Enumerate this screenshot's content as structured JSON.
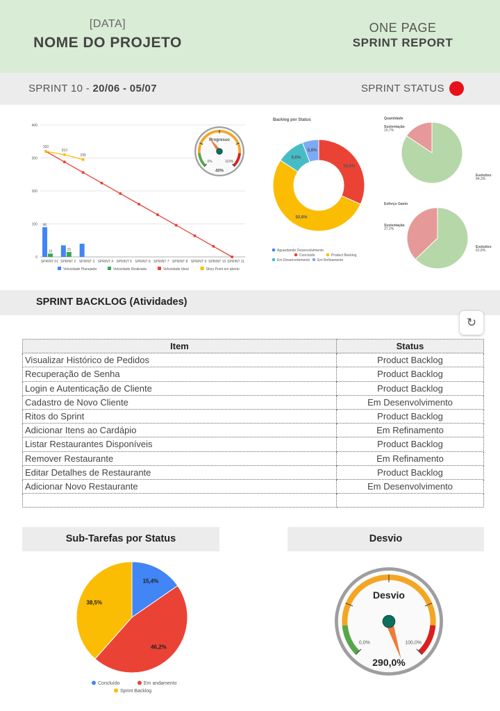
{
  "header": {
    "date": "[DATA]",
    "project_name": "NOME DO PROJETO",
    "one_page": "ONE PAGE",
    "sprint_report": "SPRINT REPORT"
  },
  "sprint_bar": {
    "sprint_prefix": "SPRINT 10 - ",
    "sprint_dates": "20/06 - 05/07",
    "status_label": "SPRINT STATUS",
    "status_color": "#e8101b"
  },
  "chart_data": [
    {
      "type": "bar",
      "title": "",
      "categories": [
        "SPRINT 01",
        "SPRINT 2",
        "SPRINT 3",
        "SPRINT 4",
        "SPRINT 5",
        "SPRINT 6",
        "SPRINT 7",
        "SPRINT 8",
        "SPRINT 9",
        "SPRINT 10",
        "SPRINT 11"
      ],
      "ylim": [
        0,
        400
      ],
      "yticks": [
        0,
        100,
        200,
        300,
        400
      ],
      "grid": true,
      "legend_placement": "bottom",
      "series": [
        {
          "name": "Velocidade Planejada",
          "kind": "bar",
          "color": "#4285f4",
          "values": [
            90,
            35,
            40,
            null,
            null,
            null,
            null,
            null,
            null,
            null,
            null
          ],
          "labels": [
            "90",
            "",
            ""
          ]
        },
        {
          "name": "Velocidade Realizada",
          "kind": "bar",
          "color": "#34a853",
          "values": [
            10,
            15,
            0,
            null,
            null,
            null,
            null,
            null,
            null,
            null,
            null
          ],
          "labels": [
            "10",
            "15",
            ""
          ]
        },
        {
          "name": "Velocidade Ideal",
          "kind": "line",
          "color": "#ea4335",
          "values": [
            320,
            288,
            256,
            224,
            192,
            160,
            128,
            96,
            64,
            32,
            0
          ]
        },
        {
          "name": "Story Point em aberto",
          "kind": "line",
          "color": "#fbbc04",
          "values": [
            320,
            310,
            295,
            null,
            null,
            null,
            null,
            null,
            null,
            null,
            null
          ],
          "labels": [
            "320",
            "310",
            "295"
          ]
        }
      ]
    },
    {
      "type": "gauge",
      "title": "Progresso",
      "value": 40,
      "value_label": "40%",
      "min_label": "0%",
      "max_label": "110%"
    },
    {
      "type": "pie",
      "title": "Backlog por Status",
      "donut": true,
      "legend_placement": "bottom",
      "slices": [
        {
          "label": "Aguardando Desenvolvimento",
          "value": 0,
          "color": "#4285f4"
        },
        {
          "label": "Concluído",
          "value": 30.6,
          "color": "#ea4335",
          "text": "30,6%"
        },
        {
          "label": "Product Backlog",
          "value": 50.6,
          "color": "#fbbc04",
          "text": "50,6%"
        },
        {
          "label": "Em Desenvolvimento",
          "value": 9.6,
          "color": "#46bdc6",
          "text": "9,6%"
        },
        {
          "label": "Em Refinamento",
          "value": 5.6,
          "color": "#7baaf7",
          "text": "5,6%"
        }
      ]
    },
    {
      "type": "pie",
      "title": "Quantidade",
      "slices": [
        {
          "label": "Sustentação",
          "value": 15.7,
          "color": "#e69999",
          "text": "15,7%"
        },
        {
          "label": "Evolutivo",
          "value": 84.3,
          "color": "#b6d7a8",
          "text": "84,3%"
        }
      ]
    },
    {
      "type": "pie",
      "title": "Esforço Gasto",
      "slices": [
        {
          "label": "Sustentação",
          "value": 37.2,
          "color": "#e69999",
          "text": "37,2%"
        },
        {
          "label": "Evolutivo",
          "value": 62.8,
          "color": "#b6d7a8",
          "text": "62,8%"
        }
      ]
    },
    {
      "type": "pie",
      "title": "Sub-Tarefas por Status",
      "legend_placement": "bottom",
      "slices": [
        {
          "label": "Concluído",
          "value": 15.4,
          "color": "#4285f4",
          "text": "15,4%"
        },
        {
          "label": "Em andamento",
          "value": 46.2,
          "color": "#ea4335",
          "text": "46,2%"
        },
        {
          "label": "Sprint Backlog",
          "value": 38.5,
          "color": "#fbbc04",
          "text": "38,5%"
        }
      ]
    },
    {
      "type": "gauge",
      "title": "Desvio",
      "value": 290,
      "value_label": "290,0%",
      "min_label": "0,0%",
      "max_label": "100,0%"
    }
  ],
  "backlog": {
    "title": "SPRINT BACKLOG (Atividades)",
    "refresh_icon": "refresh-icon",
    "columns": [
      "Item",
      "Status"
    ],
    "rows": [
      [
        "Visualizar Histórico de Pedidos",
        "Product Backlog"
      ],
      [
        "Recuperação de Senha",
        "Product Backlog"
      ],
      [
        "Login e Autenticação de Cliente",
        "Product Backlog"
      ],
      [
        "Cadastro de Novo Cliente",
        "Em Desenvolvimento"
      ],
      [
        "Ritos do Sprint",
        "Product Backlog"
      ],
      [
        "Adicionar Itens ao Cardápio",
        "Em Refinamento"
      ],
      [
        "Listar Restaurantes Disponíveis",
        "Product Backlog"
      ],
      [
        "Remover Restaurante",
        "Em Refinamento"
      ],
      [
        "Editar Detalhes de Restaurante",
        "Product Backlog"
      ],
      [
        "Adicionar Novo Restaurante",
        "Em Desenvolvimento"
      ],
      [
        "",
        ""
      ]
    ]
  },
  "panels": {
    "subtasks_title": "Sub-Tarefas por Status",
    "desvio_title": "Desvio"
  }
}
